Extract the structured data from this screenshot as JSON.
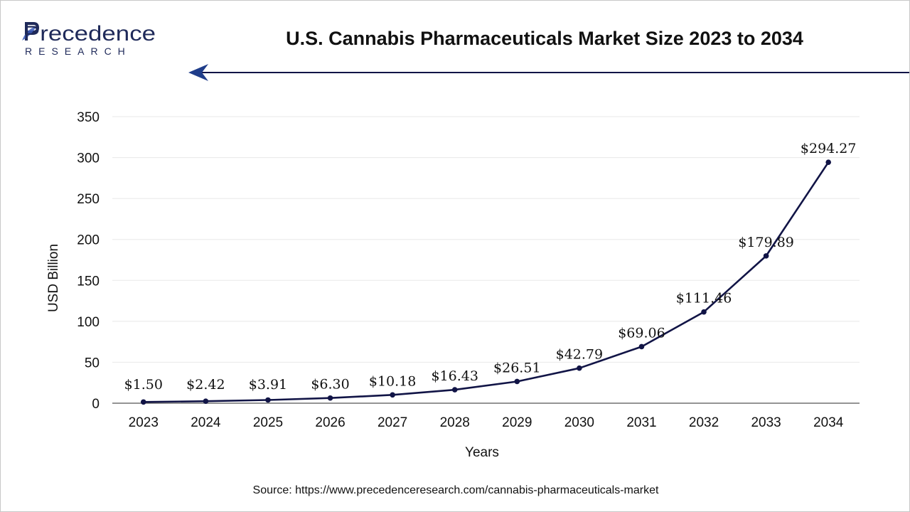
{
  "brand": {
    "name_top": "Precedence",
    "name_bottom": "RESEARCH",
    "color": "#1f2a5a"
  },
  "title": "U.S. Cannabis Pharmaceuticals Market Size 2023 to 2034",
  "source": "Source: https://www.precedenceresearch.com/cannabis-pharmaceuticals-market",
  "colors": {
    "line": "#111446",
    "grid": "#e8e8e8",
    "axis": "#555555",
    "text": "#111111"
  },
  "chart_data": {
    "type": "line",
    "title": "U.S. Cannabis Pharmaceuticals Market Size 2023 to 2034",
    "xlabel": "Years",
    "ylabel": "USD Billion",
    "ylim": [
      0,
      350
    ],
    "yticks": [
      0,
      50,
      100,
      150,
      200,
      250,
      300,
      350
    ],
    "grid": true,
    "categories": [
      "2023",
      "2024",
      "2025",
      "2026",
      "2027",
      "2028",
      "2029",
      "2030",
      "2031",
      "2032",
      "2033",
      "2034"
    ],
    "values": [
      1.5,
      2.42,
      3.91,
      6.3,
      10.18,
      16.43,
      26.51,
      42.79,
      69.06,
      111.46,
      179.89,
      294.27
    ],
    "labels": [
      "$1.50",
      "$2.42",
      "$3.91",
      "$6.30",
      "$10.18",
      "$16.43",
      "$26.51",
      "$42.79",
      "$69.06",
      "$111.46",
      "$179.89",
      "$294.27"
    ]
  }
}
